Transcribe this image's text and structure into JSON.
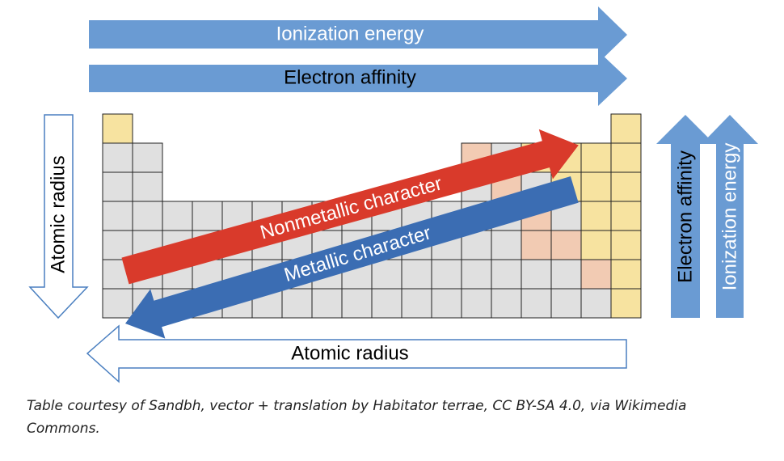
{
  "diagram": {
    "top_arrow_1": "Ionization energy",
    "top_arrow_2": "Electron affinity",
    "left_arrow": "Atomic radius",
    "diagonal_red": "Nonmetallic character",
    "diagonal_blue": "Metallic character",
    "right_arrow_1": "Electron affinity",
    "right_arrow_2": "Ionization energy",
    "bottom_arrow": "Atomic radius"
  },
  "caption": "Table courtesy of Sandbh, vector + translation by Habitator terrae, CC BY-SA 4.0, via Wikimedia Commons."
}
